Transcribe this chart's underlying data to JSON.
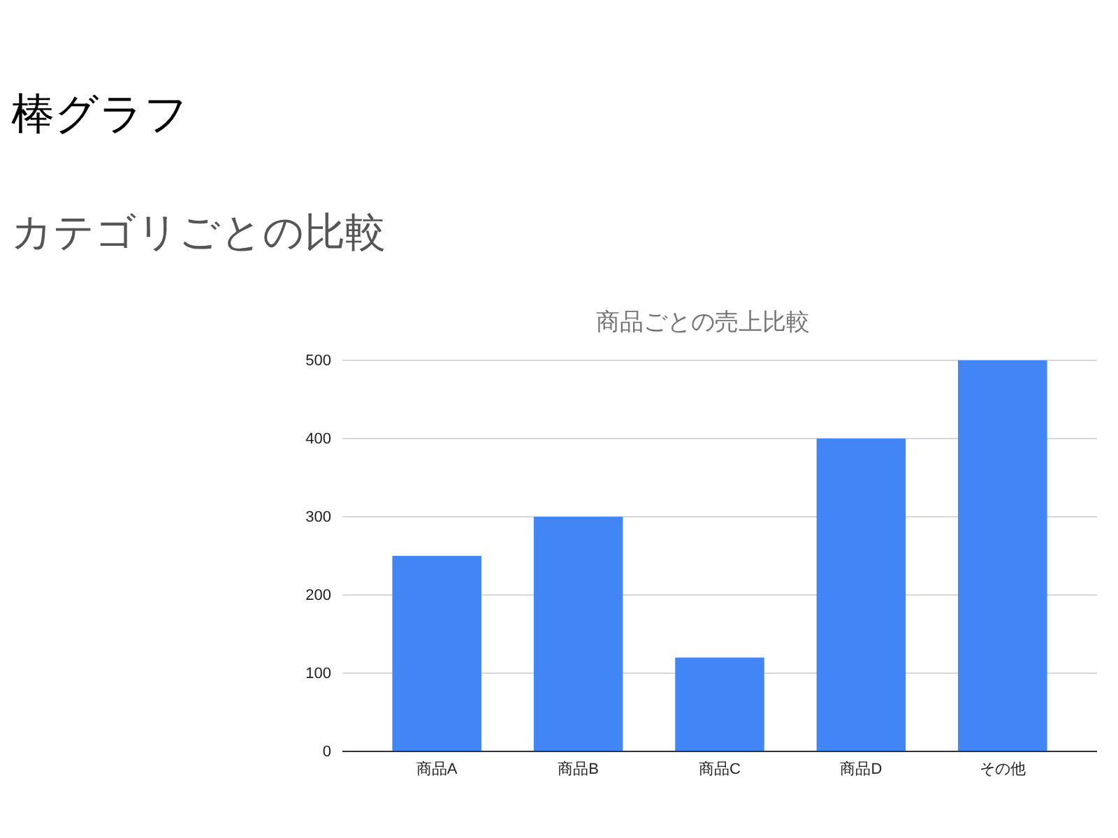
{
  "chart_data": {
    "type": "bar",
    "title": "商品ごとの売上比較",
    "annotations": [
      "棒グラフ",
      "カテゴリごとの比較"
    ],
    "categories": [
      "商品A",
      "商品B",
      "商品C",
      "商品D",
      "その他"
    ],
    "values": [
      250,
      300,
      120,
      400,
      500
    ],
    "color": "#4285f4",
    "ylim": [
      0,
      500
    ],
    "yticks": [
      0,
      100,
      200,
      300,
      400,
      500
    ],
    "grid": "y"
  }
}
